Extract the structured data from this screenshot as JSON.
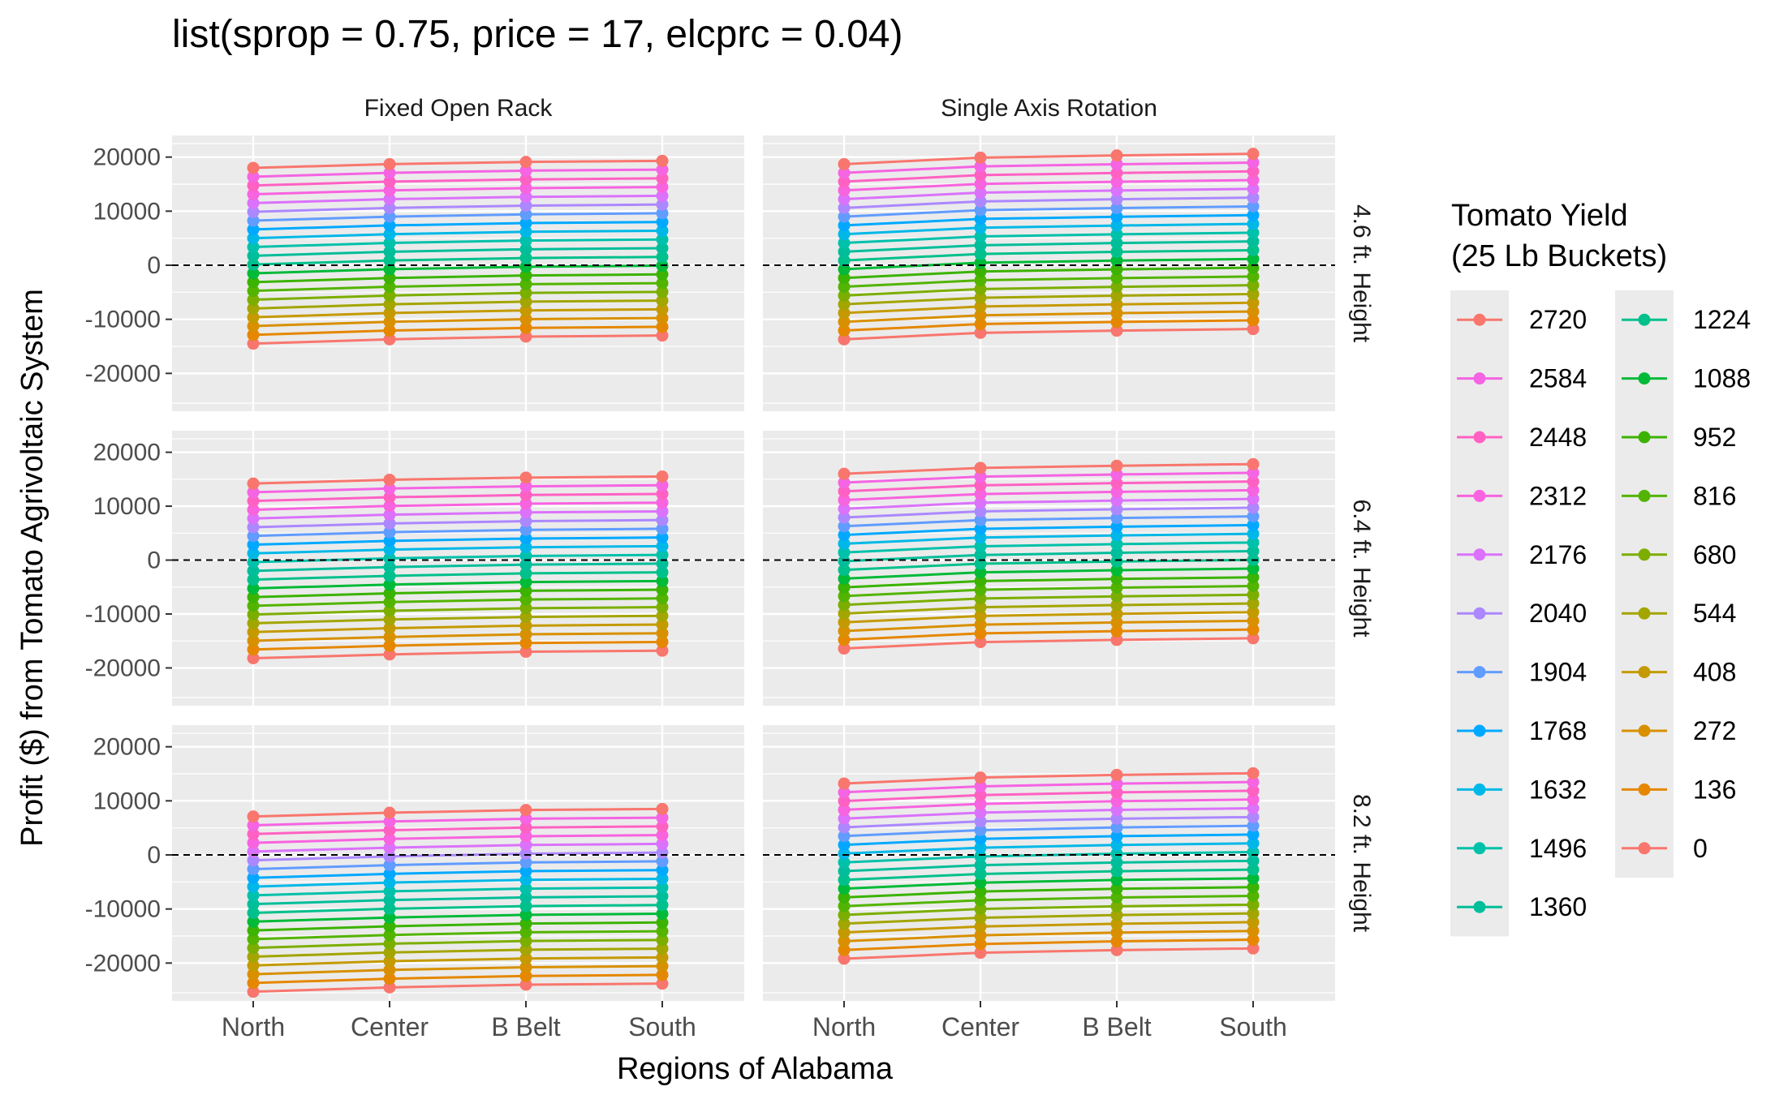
{
  "chart_data": {
    "type": "line",
    "title": "list(sprop = 0.75, price = 17, elcprc = 0.04)",
    "xlabel": "Regions of Alabama",
    "ylabel": "Profit ($) from Tomato Agrivoltaic System",
    "categories": [
      "North",
      "Center",
      "B Belt",
      "South"
    ],
    "y_ticks": [
      20000,
      10000,
      0,
      -10000,
      -20000
    ],
    "ylim": [
      -27000,
      24000
    ],
    "grid": true,
    "reference_line": {
      "y": 0,
      "style": "dashed"
    },
    "facet_columns": [
      "Fixed Open Rack",
      "Single Axis Rotation"
    ],
    "facet_rows": [
      "4.6 ft. Height",
      "6.4 ft. Height",
      "8.2 ft. Height"
    ],
    "legend": {
      "title_line1": "Tomato Yield",
      "title_line2": " (25 Lb Buckets)",
      "position": "right",
      "columns": [
        [
          "2720",
          "2584",
          "2448",
          "2312",
          "2176",
          "2040",
          "1904",
          "1768",
          "1632",
          "1496",
          "1360"
        ],
        [
          "1224",
          "1088",
          "952",
          "816",
          "680",
          "544",
          "408",
          "272",
          "136",
          "0"
        ]
      ]
    },
    "series_yields": [
      2720,
      2584,
      2448,
      2312,
      2176,
      2040,
      1904,
      1768,
      1632,
      1496,
      1360,
      1224,
      1088,
      952,
      816,
      680,
      544,
      408,
      272,
      136,
      0
    ],
    "series_colors": [
      "#F8766D",
      "#F564E3",
      "#FF61C3",
      "#F863DF",
      "#DB72FB",
      "#AC88FF",
      "#619CFF",
      "#00A9FF",
      "#00B8E7",
      "#00C1AA",
      "#00BE9A",
      "#00C08B",
      "#00BA38",
      "#3BB300",
      "#53B400",
      "#7CAE00",
      "#A3A500",
      "#C49A00",
      "#D89000",
      "#E58700",
      "#F8766D"
    ],
    "panels": [
      {
        "row": 0,
        "col": 0,
        "top": [
          18000,
          18700,
          19100,
          19300
        ],
        "bottom": [
          -14500,
          -13700,
          -13200,
          -13000
        ]
      },
      {
        "row": 0,
        "col": 1,
        "top": [
          18700,
          19900,
          20300,
          20600
        ],
        "bottom": [
          -13700,
          -12500,
          -12100,
          -11800
        ]
      },
      {
        "row": 1,
        "col": 0,
        "top": [
          14200,
          14900,
          15300,
          15500
        ],
        "bottom": [
          -18200,
          -17500,
          -17000,
          -16800
        ]
      },
      {
        "row": 1,
        "col": 1,
        "top": [
          16000,
          17100,
          17500,
          17800
        ],
        "bottom": [
          -16400,
          -15200,
          -14800,
          -14500
        ]
      },
      {
        "row": 2,
        "col": 0,
        "top": [
          7100,
          7800,
          8300,
          8500
        ],
        "bottom": [
          -25300,
          -24500,
          -24000,
          -23800
        ]
      },
      {
        "row": 2,
        "col": 1,
        "top": [
          13200,
          14300,
          14800,
          15100
        ],
        "bottom": [
          -19200,
          -18100,
          -17600,
          -17300
        ]
      }
    ]
  }
}
